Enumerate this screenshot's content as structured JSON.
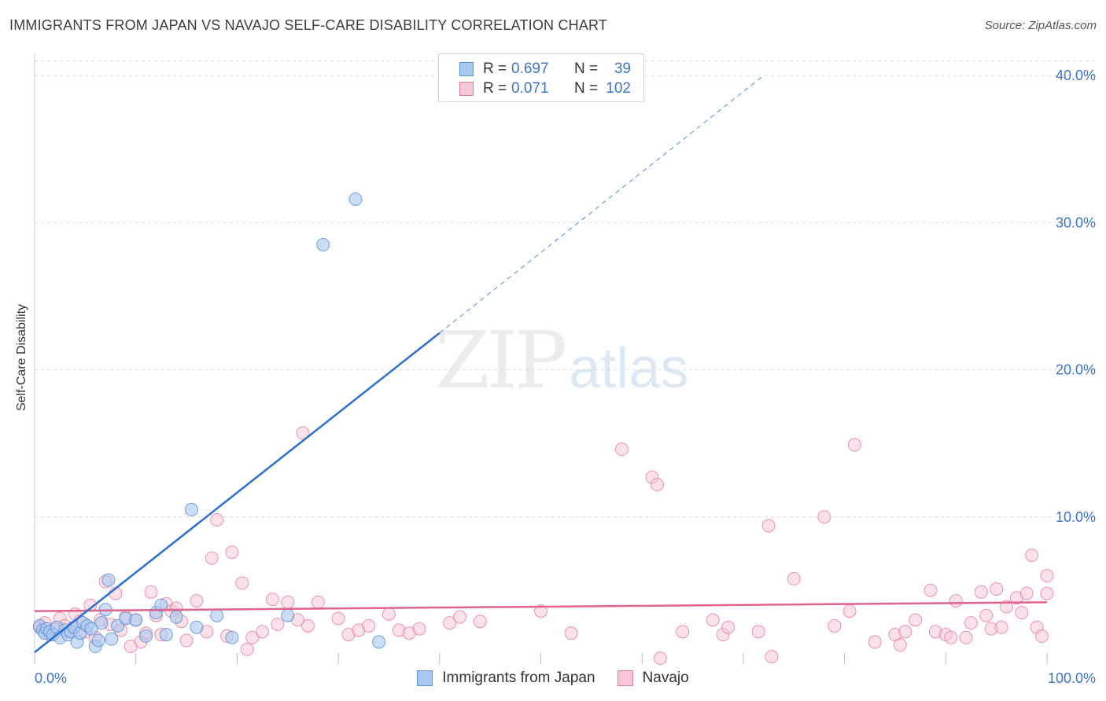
{
  "header": {
    "title": "IMMIGRANTS FROM JAPAN VS NAVAJO SELF-CARE DISABILITY CORRELATION CHART",
    "source_label": "Source:",
    "source_value": "ZipAtlas.com"
  },
  "watermark": {
    "zip": "ZIP",
    "atlas": "atlas"
  },
  "legend": {
    "rows": [
      {
        "r_label": "R =",
        "r_value": "0.697",
        "n_label": "N =",
        "n_value": "39",
        "color": "#a9c8f0",
        "border": "#5b8fd6"
      },
      {
        "r_label": "R =",
        "r_value": "0.071",
        "n_label": "N =",
        "n_value": "102",
        "color": "#f8c8d6",
        "border": "#e67a9c"
      }
    ]
  },
  "bottom_legend": {
    "series1": "Immigrants from Japan",
    "series2": "Navajo"
  },
  "colors": {
    "blue_fill": "#a9c8f0",
    "blue_stroke": "#5b8fd6",
    "blue_line": "#2b6fcf",
    "pink_fill": "#f8c8d6",
    "pink_stroke": "#e67a9c",
    "pink_line": "#e0628e",
    "tick_text": "#3d74c9",
    "grid": "#dddddd"
  },
  "chart_data": {
    "type": "scatter",
    "title": "IMMIGRANTS FROM JAPAN VS NAVAJO SELF-CARE DISABILITY CORRELATION CHART",
    "xlabel": "",
    "ylabel": "Self-Care Disability",
    "xlim": [
      0,
      100
    ],
    "ylim": [
      0,
      41.5
    ],
    "x_tick_labels": [
      "0.0%",
      "100.0%"
    ],
    "y_ticks": [
      10,
      20,
      30,
      40
    ],
    "y_tick_labels": [
      "10.0%",
      "20.0%",
      "30.0%",
      "40.0%"
    ],
    "grid": true,
    "series": [
      {
        "name": "Immigrants from Japan",
        "color": "#a9c8f0",
        "trend": {
          "x0": 0,
          "y0": 0.8,
          "x1": 40,
          "y1": 22.5,
          "dashed_to_x": 72,
          "dashed_to_y": 40.0
        },
        "points": [
          [
            0.5,
            2.6
          ],
          [
            0.8,
            2.3
          ],
          [
            1.0,
            2.1
          ],
          [
            1.2,
            2.4
          ],
          [
            1.5,
            2.2
          ],
          [
            1.8,
            2.0
          ],
          [
            2.2,
            2.5
          ],
          [
            2.5,
            1.8
          ],
          [
            3.0,
            2.3
          ],
          [
            3.3,
            2.0
          ],
          [
            3.6,
            2.2
          ],
          [
            3.9,
            2.5
          ],
          [
            4.2,
            1.5
          ],
          [
            4.5,
            2.1
          ],
          [
            4.8,
            2.8
          ],
          [
            5.2,
            2.6
          ],
          [
            5.6,
            2.4
          ],
          [
            6.0,
            1.2
          ],
          [
            6.3,
            1.6
          ],
          [
            6.6,
            2.8
          ],
          [
            7.0,
            3.7
          ],
          [
            7.3,
            5.7
          ],
          [
            7.6,
            1.7
          ],
          [
            8.2,
            2.6
          ],
          [
            9.0,
            3.1
          ],
          [
            10.0,
            3.0
          ],
          [
            11.0,
            1.9
          ],
          [
            12.0,
            3.5
          ],
          [
            13.0,
            2.0
          ],
          [
            14.0,
            3.2
          ],
          [
            12.5,
            4.0
          ],
          [
            16.0,
            2.5
          ],
          [
            18.0,
            3.3
          ],
          [
            19.5,
            1.8
          ],
          [
            15.5,
            10.5
          ],
          [
            25.0,
            3.3
          ],
          [
            28.5,
            28.5
          ],
          [
            31.7,
            31.6
          ],
          [
            34.0,
            1.5
          ]
        ]
      },
      {
        "name": "Navajo",
        "color": "#f8c8d6",
        "trend": {
          "x0": 0,
          "y0": 3.6,
          "x1": 100,
          "y1": 4.2
        },
        "points": [
          [
            0.5,
            2.5
          ],
          [
            1.0,
            2.8
          ],
          [
            1.5,
            2.0
          ],
          [
            2.0,
            2.4
          ],
          [
            2.5,
            3.1
          ],
          [
            3.0,
            2.6
          ],
          [
            3.5,
            2.2
          ],
          [
            4.0,
            3.4
          ],
          [
            4.5,
            2.9
          ],
          [
            5.0,
            2.2
          ],
          [
            5.5,
            4.0
          ],
          [
            6.0,
            1.8
          ],
          [
            6.5,
            3.0
          ],
          [
            7.0,
            5.6
          ],
          [
            7.5,
            2.7
          ],
          [
            8.0,
            4.8
          ],
          [
            8.5,
            2.3
          ],
          [
            9.0,
            3.2
          ],
          [
            9.5,
            1.2
          ],
          [
            10.0,
            3.0
          ],
          [
            10.5,
            1.5
          ],
          [
            11.0,
            2.1
          ],
          [
            11.5,
            4.9
          ],
          [
            12.0,
            3.3
          ],
          [
            12.5,
            2.0
          ],
          [
            13.0,
            4.1
          ],
          [
            13.5,
            3.6
          ],
          [
            14.0,
            3.8
          ],
          [
            14.5,
            2.9
          ],
          [
            15.0,
            1.6
          ],
          [
            16.0,
            4.3
          ],
          [
            17.0,
            2.2
          ],
          [
            17.5,
            7.2
          ],
          [
            18.0,
            9.8
          ],
          [
            19.0,
            1.9
          ],
          [
            19.5,
            7.6
          ],
          [
            20.5,
            5.5
          ],
          [
            21.0,
            1.0
          ],
          [
            21.5,
            1.8
          ],
          [
            22.5,
            2.2
          ],
          [
            23.5,
            4.4
          ],
          [
            24.0,
            2.7
          ],
          [
            25.0,
            4.2
          ],
          [
            26.0,
            3.0
          ],
          [
            26.5,
            15.7
          ],
          [
            27.0,
            2.6
          ],
          [
            28.0,
            4.2
          ],
          [
            30.0,
            3.1
          ],
          [
            31.0,
            2.0
          ],
          [
            32.0,
            2.3
          ],
          [
            33.0,
            2.6
          ],
          [
            35.0,
            3.4
          ],
          [
            36.0,
            2.3
          ],
          [
            37.0,
            2.1
          ],
          [
            38.0,
            2.4
          ],
          [
            41.0,
            2.8
          ],
          [
            42.0,
            3.2
          ],
          [
            44.0,
            2.9
          ],
          [
            50.0,
            3.6
          ],
          [
            53.0,
            2.1
          ],
          [
            58.0,
            14.6
          ],
          [
            61.0,
            12.7
          ],
          [
            61.5,
            12.2
          ],
          [
            61.8,
            0.4
          ],
          [
            64.0,
            2.2
          ],
          [
            67.0,
            3.0
          ],
          [
            68.0,
            2.0
          ],
          [
            68.5,
            2.5
          ],
          [
            71.5,
            2.2
          ],
          [
            72.5,
            9.4
          ],
          [
            72.8,
            0.5
          ],
          [
            75.0,
            5.8
          ],
          [
            78.0,
            10.0
          ],
          [
            79.0,
            2.6
          ],
          [
            80.5,
            3.6
          ],
          [
            81.0,
            14.9
          ],
          [
            83.0,
            1.5
          ],
          [
            85.0,
            2.0
          ],
          [
            85.5,
            1.3
          ],
          [
            86.0,
            2.2
          ],
          [
            87.0,
            3.0
          ],
          [
            88.5,
            5.0
          ],
          [
            89.0,
            2.2
          ],
          [
            90.0,
            2.0
          ],
          [
            90.5,
            1.8
          ],
          [
            91.0,
            4.3
          ],
          [
            92.0,
            1.8
          ],
          [
            92.5,
            2.8
          ],
          [
            93.5,
            4.9
          ],
          [
            94.0,
            3.3
          ],
          [
            94.5,
            2.4
          ],
          [
            95.0,
            5.1
          ],
          [
            95.5,
            2.5
          ],
          [
            96.0,
            3.9
          ],
          [
            97.0,
            4.5
          ],
          [
            97.5,
            3.5
          ],
          [
            98.0,
            4.8
          ],
          [
            98.5,
            7.4
          ],
          [
            99.0,
            2.5
          ],
          [
            99.5,
            1.9
          ],
          [
            100.0,
            4.8
          ],
          [
            100.0,
            6.0
          ]
        ]
      }
    ]
  }
}
